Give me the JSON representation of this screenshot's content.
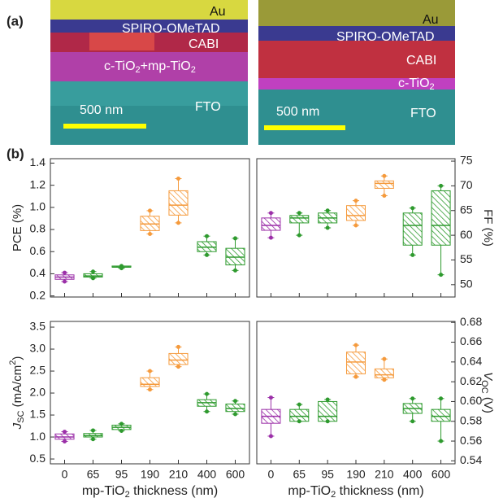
{
  "panels": [
    "(a)",
    "(b)"
  ],
  "images": [
    {
      "labels": {
        "au": "Au",
        "spiro": "SPIRO-OMeTAD",
        "cabi": "CABI",
        "tio2": [
          "c-TiO",
          "2",
          "+mp-TiO",
          "2"
        ],
        "fto": "FTO",
        "scale": "500 nm"
      }
    },
    {
      "labels": {
        "au": "Au",
        "spiro": "SPIRO-OMeTAD",
        "cabi": "CABI",
        "tio2": [
          "c-TiO",
          "2"
        ],
        "fto": "FTO",
        "scale": "500 nm"
      }
    }
  ],
  "chart_data": [
    {
      "type": "box",
      "ylabel": [
        "PCE (%)"
      ],
      "y_axis_side": "left",
      "ylim": [
        0.19,
        1.44
      ],
      "yticks": [
        0.2,
        0.4,
        0.6,
        0.8,
        {
          "value": 1.0,
          "label": "1.0"
        },
        1.2,
        1.4
      ],
      "colors": [
        "#9b2fa8",
        "#2e9a2e",
        "#2e9a2e",
        "#f59a3c",
        "#f59a3c",
        "#2e9a2e",
        "#2e9a2e"
      ],
      "min": [
        0.33,
        0.36,
        0.45,
        0.76,
        0.86,
        0.57,
        0.43
      ],
      "q1": [
        0.35,
        0.37,
        0.46,
        0.79,
        0.93,
        0.6,
        0.48
      ],
      "median": [
        0.37,
        0.38,
        0.46,
        0.85,
        1.02,
        0.64,
        0.55
      ],
      "q3": [
        0.39,
        0.4,
        0.47,
        0.92,
        1.15,
        0.69,
        0.63
      ],
      "max": [
        0.41,
        0.42,
        0.47,
        0.97,
        1.26,
        0.74,
        0.72
      ]
    },
    {
      "type": "box",
      "ylabel": [
        "FF (%)"
      ],
      "y_axis_side": "right",
      "ylim": [
        47.5,
        75.5
      ],
      "yticks": [
        50,
        55,
        60,
        65,
        70,
        75
      ],
      "colors": [
        "#9b2fa8",
        "#2e9a2e",
        "#2e9a2e",
        "#f59a3c",
        "#f59a3c",
        "#2e9a2e",
        "#2e9a2e"
      ],
      "min": [
        59.5,
        60,
        61.5,
        62,
        68,
        56,
        52
      ],
      "q1": [
        61,
        62.5,
        62.5,
        63,
        69.5,
        58,
        58
      ],
      "median": [
        62,
        63.5,
        63.5,
        64,
        70.5,
        62,
        62
      ],
      "q3": [
        63.5,
        64,
        64.5,
        66,
        71,
        64.5,
        69
      ],
      "max": [
        64.5,
        64.5,
        65,
        67,
        72,
        65.5,
        70
      ]
    },
    {
      "type": "box",
      "ylabel": [
        "J",
        "SC",
        " (mA/cm",
        "2",
        ")"
      ],
      "y_axis_side": "left",
      "xlabel": [
        "mp-TiO",
        "2",
        " thickness (nm)"
      ],
      "categories": [
        "0",
        "65",
        "95",
        "190",
        "210",
        "400",
        "600"
      ],
      "ylim": [
        0.39,
        3.63
      ],
      "yticks": [
        0.5,
        {
          "value": 1.0,
          "label": "1.0"
        },
        1.5,
        {
          "value": 2.0,
          "label": "2.0"
        },
        2.5,
        {
          "value": 3.0,
          "label": "3.0"
        },
        3.5
      ],
      "colors": [
        "#9b2fa8",
        "#2e9a2e",
        "#2e9a2e",
        "#f59a3c",
        "#f59a3c",
        "#2e9a2e",
        "#2e9a2e"
      ],
      "min": [
        0.9,
        0.95,
        1.14,
        2.08,
        2.6,
        1.58,
        1.52
      ],
      "q1": [
        0.95,
        1.0,
        1.17,
        2.15,
        2.65,
        1.7,
        1.58
      ],
      "median": [
        1.0,
        1.03,
        1.22,
        2.2,
        2.75,
        1.78,
        1.65
      ],
      "q3": [
        1.07,
        1.08,
        1.27,
        2.35,
        2.9,
        1.85,
        1.75
      ],
      "max": [
        1.12,
        1.15,
        1.3,
        2.5,
        3.05,
        1.98,
        1.82
      ]
    },
    {
      "type": "box",
      "ylabel": [
        "V",
        "OC",
        " (V)"
      ],
      "y_axis_side": "right",
      "xlabel": [
        "mp-TiO",
        "2",
        " thickness (nm)"
      ],
      "categories": [
        "0",
        "65",
        "95",
        "190",
        "210",
        "400",
        "600"
      ],
      "ylim": [
        0.537,
        0.681
      ],
      "yticks": [
        0.54,
        0.56,
        0.58,
        {
          "value": 0.6,
          "label": "0.60"
        },
        0.62,
        0.64,
        0.66,
        0.68
      ],
      "colors": [
        "#9b2fa8",
        "#2e9a2e",
        "#2e9a2e",
        "#f59a3c",
        "#f59a3c",
        "#2e9a2e",
        "#2e9a2e"
      ],
      "min": [
        0.565,
        0.58,
        0.58,
        0.625,
        0.622,
        0.58,
        0.56
      ],
      "q1": [
        0.578,
        0.58,
        0.58,
        0.628,
        0.624,
        0.588,
        0.58
      ],
      "median": [
        0.585,
        0.585,
        0.585,
        0.64,
        0.627,
        0.593,
        0.585
      ],
      "q3": [
        0.592,
        0.592,
        0.6,
        0.65,
        0.633,
        0.598,
        0.592
      ],
      "max": [
        0.604,
        0.597,
        0.602,
        0.657,
        0.643,
        0.603,
        0.603
      ]
    }
  ]
}
